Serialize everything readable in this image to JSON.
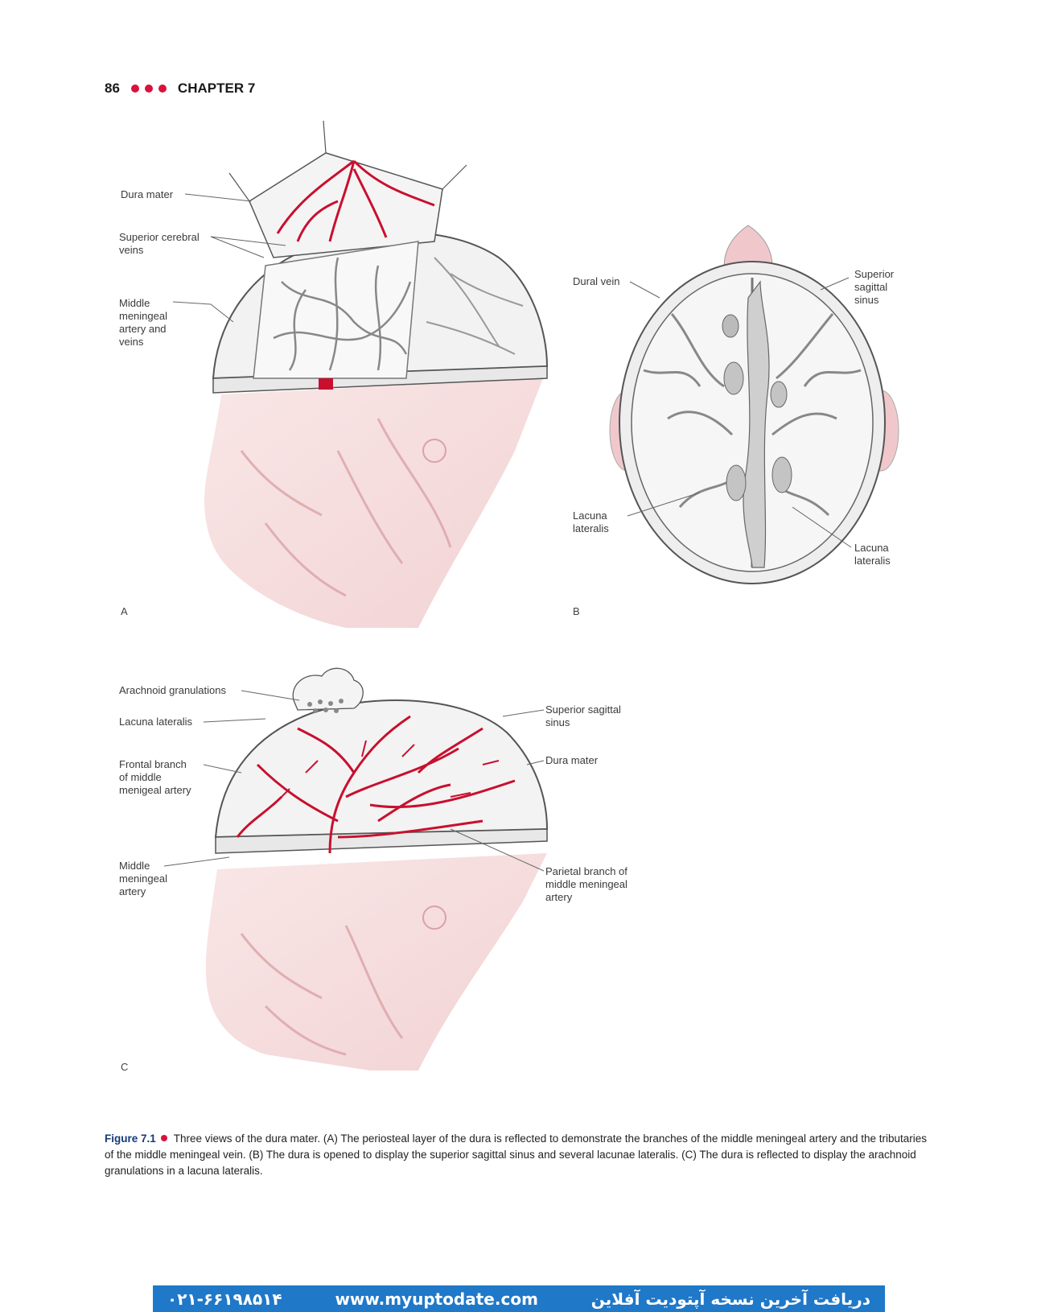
{
  "header": {
    "page_number": "86",
    "chapter": "CHAPTER 7"
  },
  "figure_a": {
    "letter": "A",
    "labels": {
      "dura_mater": "Dura mater",
      "superior_cerebral_veins": "Superior cerebral\nveins",
      "middle_meningeal": "Middle\nmeningeal\nartery and\nveins"
    }
  },
  "figure_b": {
    "letter": "B",
    "labels": {
      "dural_vein": "Dural vein",
      "superior_sagittal_sinus": "Superior\nsagittal\nsinus",
      "lacuna_lateralis_left": "Lacuna\nlateralis",
      "lacuna_lateralis_right": "Lacuna\nlateralis"
    }
  },
  "figure_c": {
    "letter": "C",
    "labels": {
      "arachnoid_granulations": "Arachnoid granulations",
      "lacuna_lateralis": "Lacuna lateralis",
      "frontal_branch": "Frontal branch\nof middle\nmenigeal artery",
      "middle_meningeal_artery": "Middle\nmeningeal\nartery",
      "superior_sagittal_sinus": "Superior sagittal\nsinus",
      "dura_mater": "Dura mater",
      "parietal_branch": "Parietal branch of\nmiddle meningeal\nartery"
    }
  },
  "caption": {
    "figure_label": "Figure 7.1",
    "text": "Three views of the dura mater. (A) The periosteal layer of the dura is reflected to demonstrate the branches of the middle meningeal artery and the tributaries of the middle meningeal vein. (B) The dura is opened to display the superior sagittal sinus and several lacunae lateralis. (C) The dura is reflected to display the arachnoid granulations in a lacuna lateralis."
  },
  "banner": {
    "phone": "۰۲۱-۶۶۱۹۸۵۱۴",
    "url": "www.myuptodate.com",
    "persian_text": "دریافت آخرین نسخه آپتودیت آفلاین"
  },
  "colors": {
    "accent": "#d9123c",
    "artery": "#c8102e",
    "banner": "#1f78c8",
    "figure_label": "#15397a"
  }
}
